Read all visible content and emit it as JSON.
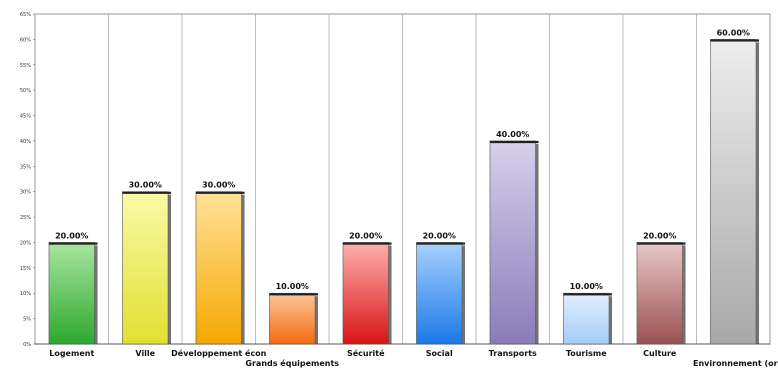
{
  "chart_data": {
    "type": "bar",
    "title": "",
    "xlabel": "",
    "ylabel": "",
    "ylim": [
      0,
      65
    ],
    "yticks": [
      0,
      5,
      10,
      15,
      20,
      25,
      30,
      35,
      40,
      45,
      50,
      55,
      60,
      65
    ],
    "ytick_labels": [
      "0%",
      "5%",
      "10%",
      "15%",
      "20%",
      "25%",
      "30%",
      "35%",
      "40%",
      "45%",
      "50%",
      "55%",
      "60%",
      "65%"
    ],
    "grid": "vertical",
    "categories": [
      "Logement",
      "Ville",
      "Développement écon",
      "Grands équipements",
      "Sécurité",
      "Social",
      "Transports",
      "Tourisme",
      "Culture",
      "Environnement (ordures"
    ],
    "values": [
      20,
      30,
      30,
      10,
      20,
      20,
      40,
      10,
      20,
      60
    ],
    "data_labels": [
      "20.00%",
      "30.00%",
      "30.00%",
      "10.00%",
      "20.00%",
      "20.00%",
      "40.00%",
      "10.00%",
      "20.00%",
      "60.00%"
    ],
    "colors": [
      [
        "#a8e6a0",
        "#2ea82e"
      ],
      [
        "#fafaa8",
        "#e0e030"
      ],
      [
        "#ffe29a",
        "#f5a800"
      ],
      [
        "#ffc69a",
        "#f26c10"
      ],
      [
        "#ffb0b0",
        "#d81414"
      ],
      [
        "#a8d2ff",
        "#1a78e8"
      ],
      [
        "#d6d0ec",
        "#8a7cb8"
      ],
      [
        "#e0efff",
        "#a6cdf4"
      ],
      [
        "#e8c8c8",
        "#9c5050"
      ],
      [
        "#eeeeee",
        "#a8a8a8"
      ]
    ]
  }
}
